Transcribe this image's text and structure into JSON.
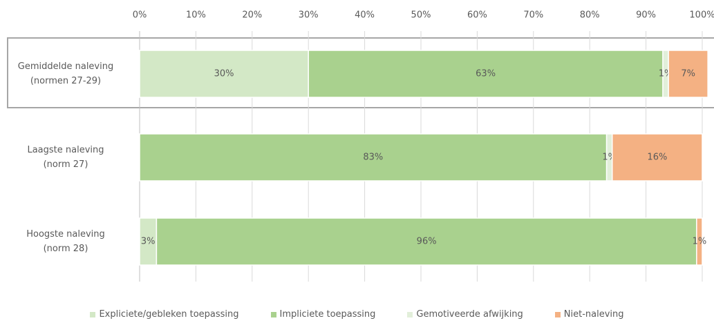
{
  "chart_data": {
    "type": "stacked_bar_horizontal",
    "categories": [
      "Gemiddelde naleving\n(normen 27-29)",
      "Laagste naleving\n(norm 27)",
      "Hoogste naleving\n(norm 28)"
    ],
    "series": [
      {
        "name": "Expliciete/gebleken toepassing",
        "color": "#d3e8c6",
        "values": [
          30,
          0,
          3
        ],
        "value_labels": [
          "30%",
          null,
          "3%"
        ]
      },
      {
        "name": "Impliciete toepassing",
        "color": "#a9d18e",
        "values": [
          63,
          83,
          96
        ],
        "value_labels": [
          "63%",
          "83%",
          "96%"
        ]
      },
      {
        "name": "Gemotiveerde afwijking",
        "color": "#e2efda",
        "values": [
          1,
          1,
          0
        ],
        "value_labels": [
          "1%",
          "1%",
          null
        ]
      },
      {
        "name": "Niet-naleving",
        "color": "#f4b183",
        "values": [
          7,
          16,
          1
        ],
        "value_labels": [
          "7%",
          "16%",
          "1%"
        ]
      }
    ],
    "xlim": [
      0,
      100
    ],
    "xticks": [
      {
        "value": 0,
        "label": "0%"
      },
      {
        "value": 10,
        "label": "10%"
      },
      {
        "value": 20,
        "label": "20%"
      },
      {
        "value": 30,
        "label": "30%"
      },
      {
        "value": 40,
        "label": "40%"
      },
      {
        "value": 50,
        "label": "50%"
      },
      {
        "value": 60,
        "label": "60%"
      },
      {
        "value": 70,
        "label": "70%"
      },
      {
        "value": 80,
        "label": "80%"
      },
      {
        "value": 90,
        "label": "90%"
      },
      {
        "value": 100,
        "label": "100%"
      }
    ],
    "grid": true,
    "legend": "bottom"
  }
}
